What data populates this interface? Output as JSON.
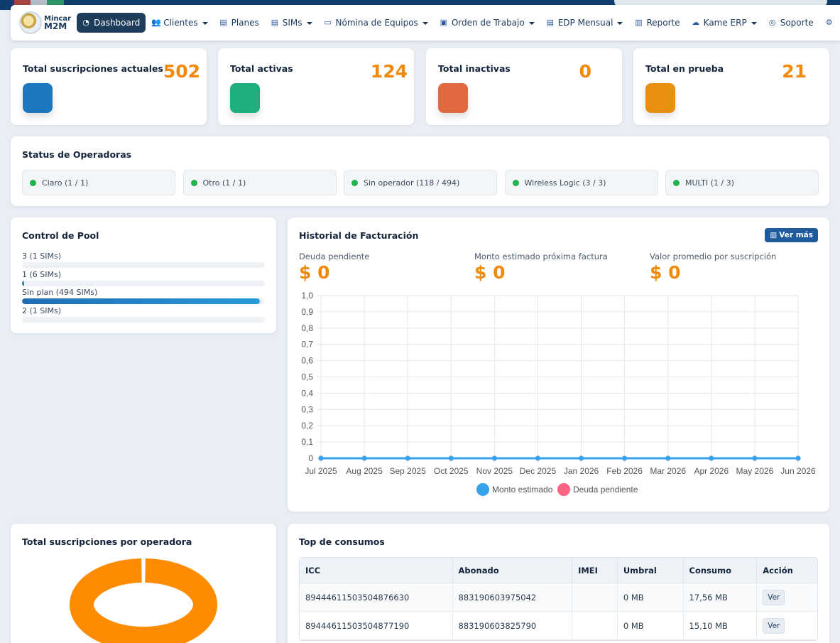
{
  "nav": {
    "brand_line1": "Mincar",
    "brand_line2": "M2M",
    "items": [
      {
        "label": "Dashboard",
        "icon": "gauge-icon",
        "glyph": "◔",
        "dropdown": false,
        "active": true
      },
      {
        "label": "Clientes",
        "icon": "users-icon",
        "glyph": "👥",
        "dropdown": true
      },
      {
        "label": "Planes",
        "icon": "file-icon",
        "glyph": "▤",
        "dropdown": false
      },
      {
        "label": "SIMs",
        "icon": "sim-icon",
        "glyph": "▤",
        "dropdown": true
      },
      {
        "label": "Nómina de Equipos",
        "icon": "monitor-icon",
        "glyph": "▭",
        "dropdown": true
      },
      {
        "label": "Orden de Trabajo",
        "icon": "id-card-icon",
        "glyph": "▣",
        "dropdown": true
      },
      {
        "label": "EDP Mensual",
        "icon": "invoice-icon",
        "glyph": "▤",
        "dropdown": true
      },
      {
        "label": "Reporte",
        "icon": "chart-icon",
        "glyph": "▥",
        "dropdown": false
      },
      {
        "label": "Kame ERP",
        "icon": "cloud-icon",
        "glyph": "☁",
        "dropdown": true
      },
      {
        "label": "Soporte",
        "icon": "headset-icon",
        "glyph": "◎",
        "dropdown": false
      },
      {
        "label": "",
        "icon": "user-gear-icon",
        "glyph": "⚙",
        "dropdown": false
      },
      {
        "label": "",
        "icon": "gears-icon",
        "glyph": "⚙",
        "dropdown": false
      }
    ]
  },
  "stats": [
    {
      "title": "Total suscripciones actuales",
      "value": "502",
      "color": "#1d78c1"
    },
    {
      "title": "Total activas",
      "value": "124",
      "color": "#1fae7d"
    },
    {
      "title": "Total inactivas",
      "value": "0",
      "color": "#e2683f"
    },
    {
      "title": "Total en prueba",
      "value": "21",
      "color": "#e88f12"
    }
  ],
  "operators": {
    "title": "Status de Operadoras",
    "items": [
      "Claro (1 / 1)",
      "Otro (1 / 1)",
      "Sin operador (118 / 494)",
      "Wireless Logic (3 / 3)",
      "MULTI (1 / 3)"
    ]
  },
  "pool": {
    "title": "Control de Pool",
    "items": [
      {
        "label": "3 (1 SIMs)",
        "fraction": 0.0
      },
      {
        "label": "1 (6 SIMs)",
        "fraction": 0.01
      },
      {
        "label": "Sin plan (494 SIMs)",
        "fraction": 0.98
      },
      {
        "label": "2 (1 SIMs)",
        "fraction": 0.0
      }
    ]
  },
  "billing": {
    "title": "Historial de Facturación",
    "ver_mas": "Ver más",
    "kpis": [
      {
        "label": "Deuda pendiente",
        "value": "$ 0"
      },
      {
        "label": "Monto estimado próxima factura",
        "value": "$ 0"
      },
      {
        "label": "Valor promedio por suscripción",
        "value": "$ 0"
      }
    ]
  },
  "chart_data": {
    "type": "line",
    "x": [
      "Jul 2025",
      "Aug 2025",
      "Sep 2025",
      "Oct 2025",
      "Nov 2025",
      "Dec 2025",
      "Jan 2026",
      "Feb 2026",
      "Mar 2026",
      "Apr 2026",
      "May 2026",
      "Jun 2026"
    ],
    "series": [
      {
        "name": "Monto estimado",
        "color": "#36a2eb",
        "values": [
          0,
          0,
          0,
          0,
          0,
          0,
          0,
          0,
          0,
          0,
          0,
          0
        ]
      },
      {
        "name": "Deuda pendiente",
        "color": "#ff6384",
        "values": [
          0,
          0,
          0,
          0,
          0,
          0,
          0,
          0,
          0,
          0,
          0,
          0
        ]
      }
    ],
    "ylim": [
      0,
      1.0
    ],
    "yticks": [
      "1,0",
      "0,9",
      "0,8",
      "0,7",
      "0,6",
      "0,5",
      "0,4",
      "0,3",
      "0,2",
      "0,1",
      "0"
    ],
    "grid": true,
    "legend": "bottom"
  },
  "operator_totals": {
    "title": "Total suscripciones por operadora",
    "chart_type": "doughnut",
    "color": "#ff8c00"
  },
  "top_consumos": {
    "title": "Top de consumos",
    "columns": [
      "ICC",
      "Abonado",
      "IMEI",
      "Umbral",
      "Consumo",
      "Acción"
    ],
    "rows": [
      {
        "icc": "89444611503504876630",
        "abonado": "883190603975042",
        "imei": "",
        "umbral": "0 MB",
        "consumo": "17,56 MB",
        "accion": "Ver"
      },
      {
        "icc": "89444611503504877190",
        "abonado": "883190603825790",
        "imei": "",
        "umbral": "0 MB",
        "consumo": "15,10 MB",
        "accion": "Ver"
      }
    ]
  }
}
